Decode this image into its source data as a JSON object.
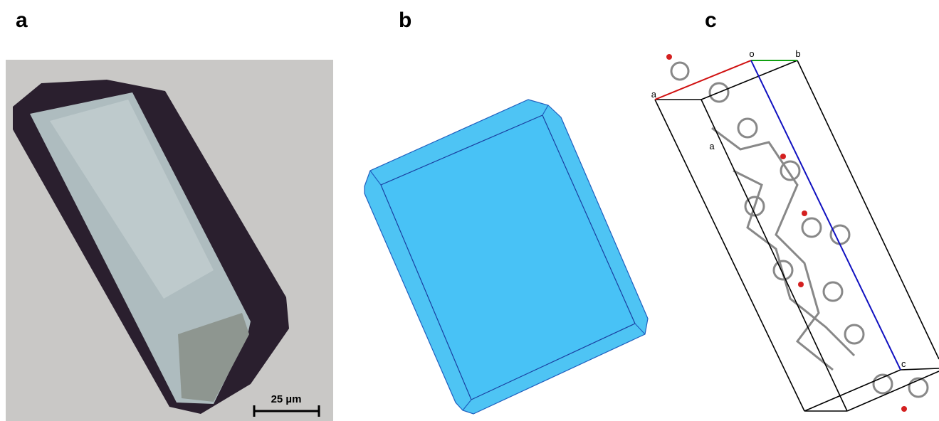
{
  "panels": [
    {
      "label": "a",
      "scale_bar": "25 µm"
    },
    {
      "label": "b"
    },
    {
      "label": "c",
      "axis_labels": [
        "o",
        "b",
        "a",
        "c",
        "a"
      ]
    }
  ]
}
